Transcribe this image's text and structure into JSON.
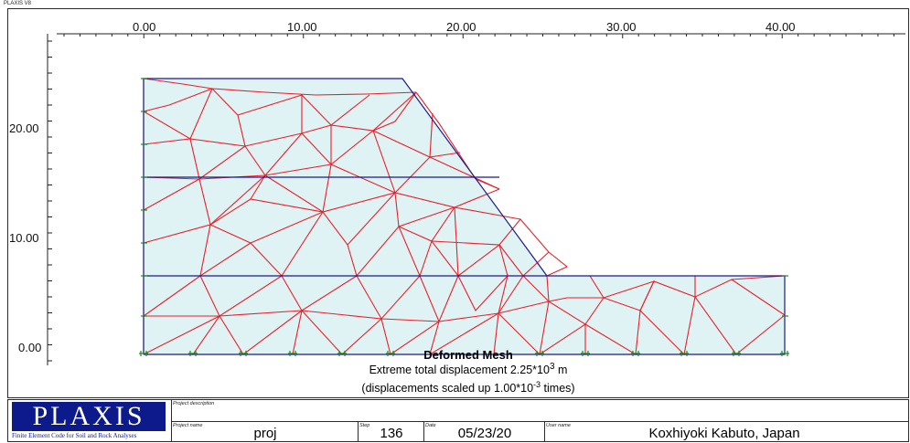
{
  "app_title": "PLAXIS V8",
  "axes": {
    "x_ticks": [
      "0.00",
      "10.00",
      "20.00",
      "30.00",
      "40.00"
    ],
    "y_ticks": [
      "20.00",
      "10.00",
      "0.00"
    ]
  },
  "plot": {
    "title": "Deformed Mesh",
    "subtitle_prefix": "Extreme total displacement 2.25*10",
    "subtitle_exponent": "3",
    "subtitle_suffix": " m",
    "scale_note": "(displacements scaled up 1.00*10",
    "scale_exponent": "-3",
    "scale_suffix": " times)",
    "colors": {
      "mesh": "#e8202a",
      "boundary": "#1a1a8c",
      "fill": "#dff2f4",
      "fixity": "#1e8a1e"
    }
  },
  "title_block": {
    "logo": "PLAXIS",
    "logo_subtitle": "Finite Element Code for Soil and Rock Analyses",
    "project_description_label": "Project description",
    "project_name_label": "Project name",
    "project_name": "proj",
    "step_label": "Step",
    "step": "136",
    "date_label": "Date",
    "date": "05/23/20",
    "user_label": "User name",
    "user": "Koxhiyoki Kabuto, Japan"
  }
}
